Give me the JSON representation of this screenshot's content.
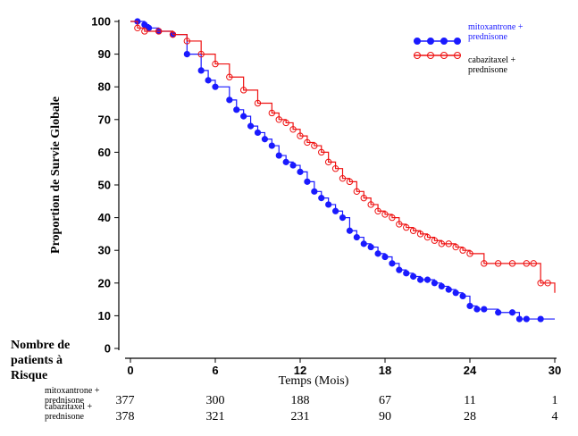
{
  "chart_data": {
    "type": "line",
    "title": "",
    "xlabel": "Temps (Mois)",
    "ylabel": "Proportion de Survie Globale",
    "xlim": [
      0,
      30
    ],
    "ylim": [
      0,
      100
    ],
    "xticks": [
      0,
      6,
      12,
      18,
      24,
      30
    ],
    "yticks": [
      0,
      10,
      20,
      30,
      40,
      50,
      60,
      70,
      80,
      90,
      100
    ],
    "legend_position": "top-right",
    "series": [
      {
        "name": "mitoxantrone + prednisone",
        "legend_lines": [
          "mitoxantrone +",
          "prednisone"
        ],
        "color": "#1a1aff",
        "marker": "filled-circle",
        "x": [
          0,
          0.5,
          1,
          1.3,
          2,
          3,
          4,
          5,
          5.5,
          6,
          7,
          7.5,
          8,
          8.5,
          9,
          9.5,
          10,
          10.5,
          11,
          11.5,
          12,
          12.5,
          13,
          13.5,
          14,
          14.5,
          15,
          15.5,
          16,
          16.5,
          17,
          17.5,
          18,
          18.5,
          19,
          19.5,
          20,
          20.5,
          21,
          21.5,
          22,
          22.5,
          23,
          23.5,
          24,
          24.5,
          25,
          26,
          27,
          27.5,
          28,
          29,
          30
        ],
        "y": [
          100,
          100,
          99,
          98,
          97,
          96,
          90,
          85,
          82,
          80,
          76,
          73,
          71,
          68,
          66,
          64,
          62,
          59,
          57,
          56,
          54,
          51,
          48,
          46,
          44,
          42,
          40,
          36,
          34,
          32,
          31,
          29,
          28,
          26,
          24,
          23,
          22,
          21,
          21,
          20,
          19,
          18,
          17,
          16,
          13,
          12,
          12,
          11,
          11,
          9,
          9,
          9,
          9
        ]
      },
      {
        "name": "cabazitaxel + prednisone",
        "legend_lines": [
          "cabazitaxel +",
          "prednisone"
        ],
        "color": "#ee1111",
        "marker": "open-circle",
        "x": [
          0,
          0.5,
          1,
          2,
          3,
          4,
          5,
          6,
          7,
          8,
          9,
          10,
          10.5,
          11,
          11.5,
          12,
          12.5,
          13,
          13.5,
          14,
          14.5,
          15,
          15.5,
          16,
          16.5,
          17,
          17.5,
          18,
          18.5,
          19,
          19.5,
          20,
          20.5,
          21,
          21.5,
          22,
          22.5,
          23,
          23.5,
          24,
          25,
          26,
          27,
          28,
          28.5,
          29,
          29.5,
          30
        ],
        "y": [
          100,
          98,
          97,
          97,
          96,
          94,
          90,
          87,
          83,
          79,
          75,
          72,
          70,
          69,
          67,
          65,
          63,
          62,
          60,
          57,
          55,
          52,
          51,
          48,
          46,
          44,
          42,
          41,
          40,
          38,
          37,
          36,
          35,
          34,
          33,
          32,
          32,
          31,
          30,
          29,
          26,
          26,
          26,
          26,
          26,
          20,
          20,
          17
        ]
      }
    ]
  },
  "risk_table": {
    "title": "Nombre de patients à Risque",
    "rows": [
      {
        "label_lines": [
          "mitoxantrone +",
          "prednisone"
        ],
        "values": [
          "377",
          "300",
          "188",
          "67",
          "11",
          "1"
        ]
      },
      {
        "label_lines": [
          "cabazitaxel +",
          "prednisone"
        ],
        "values": [
          "378",
          "321",
          "231",
          "90",
          "28",
          "4"
        ]
      }
    ]
  }
}
